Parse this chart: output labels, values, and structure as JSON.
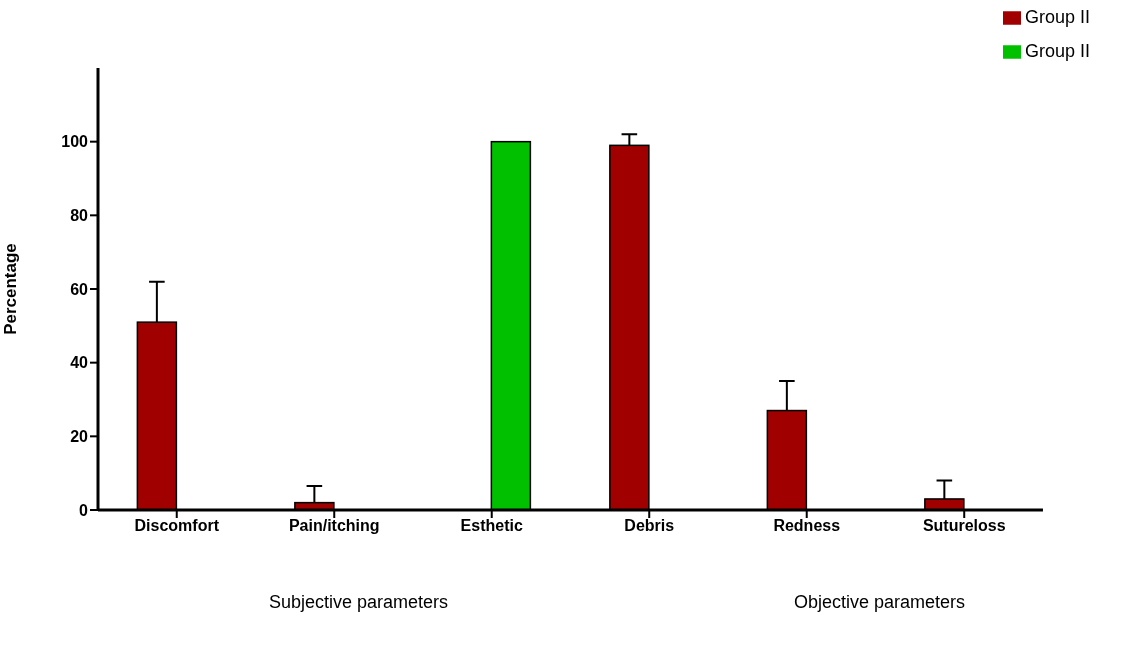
{
  "chart_data": {
    "type": "bar",
    "ylabel": "Percentage",
    "categories": [
      "Discomfort",
      "Pain/itching",
      "Esthetic",
      "Debris",
      "Redness",
      "Sutureloss"
    ],
    "series": [
      {
        "name": "Group II",
        "color": "#a00000",
        "values": [
          51,
          2,
          0,
          99,
          27,
          3
        ],
        "errors": [
          [
            51,
            62
          ],
          [
            2,
            6.5
          ],
          null,
          [
            99,
            102
          ],
          [
            27,
            35
          ],
          [
            3,
            8
          ]
        ]
      },
      {
        "name": "Group II",
        "color": "#00c000",
        "values": [
          0,
          0,
          100,
          0,
          0,
          0
        ]
      }
    ],
    "ylim": [
      0,
      120
    ],
    "yticks": [
      0,
      20,
      40,
      60,
      80,
      100
    ],
    "grid": false,
    "legend": "top right",
    "annotations": [
      "Subjective parameters",
      "Objective parameters"
    ]
  }
}
